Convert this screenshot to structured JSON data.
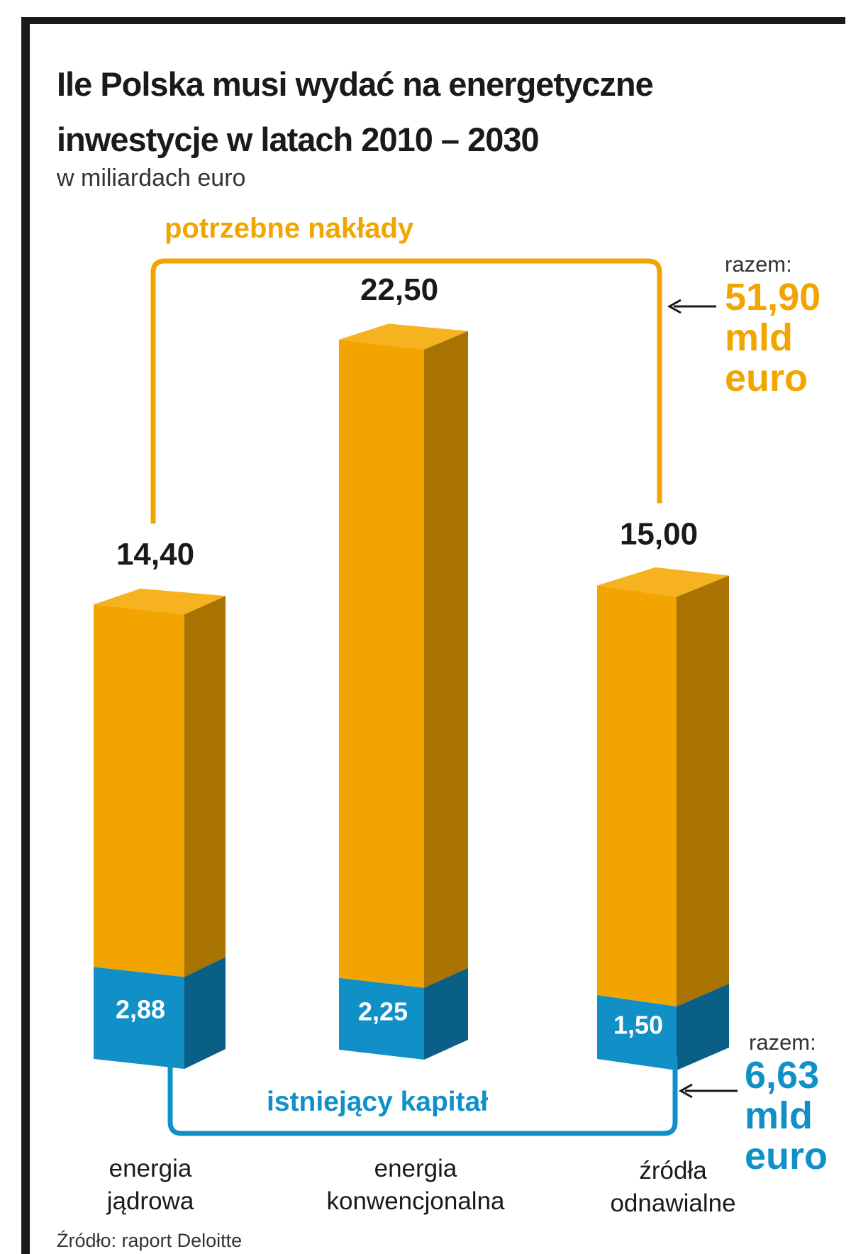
{
  "title": "Ile Polska musi wydać na energetyczne inwestycje w latach 2010 – 2030",
  "subtitle": "w miliardach euro",
  "source": "Źródło: raport Deloitte",
  "colors": {
    "needed_front": "#f2a500",
    "needed_side": "#a87300",
    "needed_top": "#f7b21f",
    "existing_front": "#1190c8",
    "existing_side": "#0a5f86",
    "frame": "#1a1a1a"
  },
  "groups": {
    "needed_label": "potrzebne nakłady",
    "existing_label": "istniejący kapitał"
  },
  "totals": {
    "needed": {
      "prefix": "razem:",
      "value": "51,90",
      "unit": "mld",
      "currency": "euro"
    },
    "existing": {
      "prefix": "razem:",
      "value": "6,63",
      "unit": "mld",
      "currency": "euro"
    }
  },
  "chart_data": {
    "type": "bar",
    "categories": [
      [
        "energia",
        "jądrowa"
      ],
      [
        "energia",
        "konwencjonalna"
      ],
      [
        "źródła",
        "odnawialne"
      ]
    ],
    "series": [
      {
        "name": "potrzebne nakłady",
        "values": [
          14.4,
          22.5,
          15.0
        ],
        "labels": [
          "14,40",
          "22,50",
          "15,00"
        ]
      },
      {
        "name": "istniejący kapitał",
        "values": [
          2.88,
          2.25,
          1.5
        ],
        "labels": [
          "2,88",
          "2,25",
          "1,50"
        ]
      }
    ],
    "totals": {
      "potrzebne nakłady": 51.9,
      "istniejący kapitał": 6.63
    },
    "unit": "mld euro"
  }
}
